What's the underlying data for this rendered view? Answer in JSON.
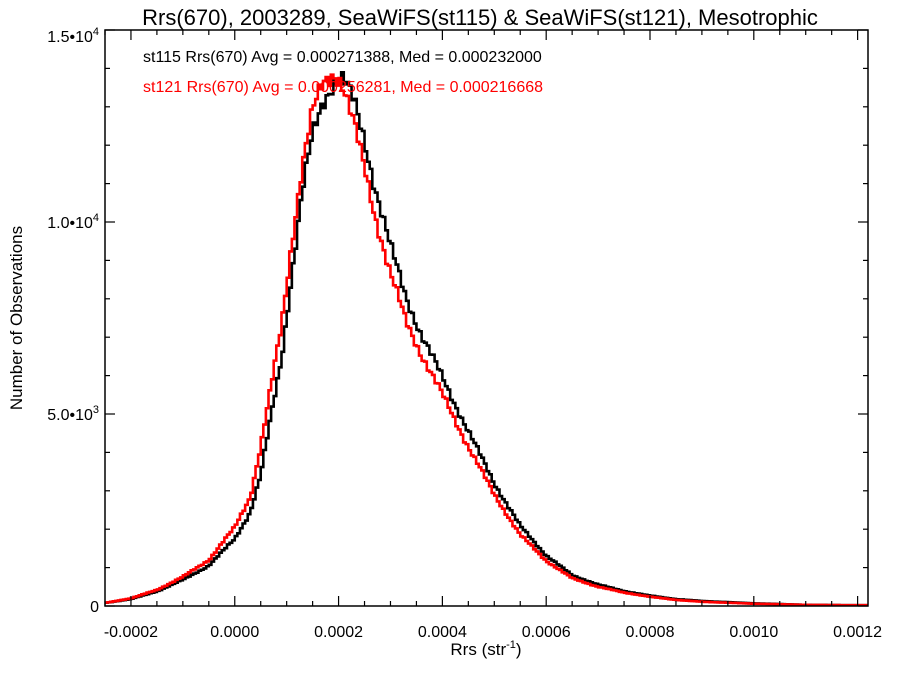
{
  "chart_data": {
    "type": "histogram-step",
    "title": "Rrs(670), 2003289, SeaWiFS(st115) & SeaWiFS(st121), Mesotrophic",
    "xlabel": "Rrs (str",
    "xlabel_sup": "-1",
    "xlabel_end": ")",
    "ylabel": "Number of Observations",
    "xlim": [
      -0.00025,
      0.00122
    ],
    "ylim": [
      0,
      15000
    ],
    "grid": false,
    "legend_position": "top-left",
    "x_ticks": [
      {
        "value": -0.0002,
        "label": "-0.0002"
      },
      {
        "value": 0.0,
        "label": "0.0000"
      },
      {
        "value": 0.0002,
        "label": "0.0002"
      },
      {
        "value": 0.0004,
        "label": "0.0004"
      },
      {
        "value": 0.0006,
        "label": "0.0006"
      },
      {
        "value": 0.0008,
        "label": "0.0008"
      },
      {
        "value": 0.001,
        "label": "0.0010"
      },
      {
        "value": 0.0012,
        "label": "0.0012"
      }
    ],
    "y_ticks": [
      {
        "value": 0,
        "mant": "0",
        "exp": ""
      },
      {
        "value": 5000,
        "mant": "5.0•10",
        "exp": "3"
      },
      {
        "value": 10000,
        "mant": "1.0•10",
        "exp": "4"
      },
      {
        "value": 15000,
        "mant": "1.5•10",
        "exp": "4"
      }
    ],
    "series": [
      {
        "name": "st115",
        "color": "#000000",
        "label": "st115 Rrs(670) Avg = 0.000271388, Med = 0.000232000",
        "points": [
          [
            -0.00025,
            80
          ],
          [
            -0.0002,
            180
          ],
          [
            -0.00015,
            380
          ],
          [
            -0.0001,
            680
          ],
          [
            -5e-05,
            1050
          ],
          [
            0.0,
            1750
          ],
          [
            3e-05,
            2450
          ],
          [
            5e-05,
            3400
          ],
          [
            7e-05,
            4950
          ],
          [
            9e-05,
            6450
          ],
          [
            0.00011,
            8650
          ],
          [
            0.00013,
            10750
          ],
          [
            0.00015,
            12250
          ],
          [
            0.00017,
            13150
          ],
          [
            0.00019,
            13650
          ],
          [
            0.0002,
            13750
          ],
          [
            0.00021,
            13700
          ],
          [
            0.00023,
            13100
          ],
          [
            0.00025,
            12150
          ],
          [
            0.00027,
            10950
          ],
          [
            0.0003,
            9350
          ],
          [
            0.00033,
            8050
          ],
          [
            0.00036,
            7050
          ],
          [
            0.0004,
            5950
          ],
          [
            0.00045,
            4550
          ],
          [
            0.0005,
            3200
          ],
          [
            0.00055,
            2080
          ],
          [
            0.0006,
            1320
          ],
          [
            0.00065,
            800
          ],
          [
            0.0007,
            560
          ],
          [
            0.00075,
            390
          ],
          [
            0.0008,
            270
          ],
          [
            0.00085,
            180
          ],
          [
            0.0009,
            130
          ],
          [
            0.001,
            70
          ],
          [
            0.0011,
            30
          ],
          [
            0.0012,
            20
          ]
        ]
      },
      {
        "name": "st121",
        "color": "#ff0000",
        "label": "st121 Rrs(670) Avg = 0.000256281, Med = 0.000216668",
        "points": [
          [
            -0.00025,
            80
          ],
          [
            -0.0002,
            200
          ],
          [
            -0.00015,
            420
          ],
          [
            -0.0001,
            760
          ],
          [
            -5e-05,
            1200
          ],
          [
            0.0,
            2050
          ],
          [
            3e-05,
            2850
          ],
          [
            5e-05,
            4150
          ],
          [
            7e-05,
            5700
          ],
          [
            9e-05,
            7300
          ],
          [
            0.00011,
            9500
          ],
          [
            0.00013,
            11450
          ],
          [
            0.00015,
            12850
          ],
          [
            0.00017,
            13600
          ],
          [
            0.00019,
            13900
          ],
          [
            0.0002,
            13800
          ],
          [
            0.00021,
            13500
          ],
          [
            0.00023,
            12500
          ],
          [
            0.00025,
            11400
          ],
          [
            0.00027,
            10200
          ],
          [
            0.0003,
            8650
          ],
          [
            0.00033,
            7400
          ],
          [
            0.00036,
            6550
          ],
          [
            0.0004,
            5500
          ],
          [
            0.00045,
            4150
          ],
          [
            0.0005,
            2900
          ],
          [
            0.00055,
            1850
          ],
          [
            0.0006,
            1180
          ],
          [
            0.00065,
            720
          ],
          [
            0.0007,
            500
          ],
          [
            0.00075,
            350
          ],
          [
            0.0008,
            240
          ],
          [
            0.00085,
            160
          ],
          [
            0.0009,
            110
          ],
          [
            0.001,
            60
          ],
          [
            0.0011,
            30
          ],
          [
            0.0012,
            20
          ]
        ]
      }
    ]
  }
}
